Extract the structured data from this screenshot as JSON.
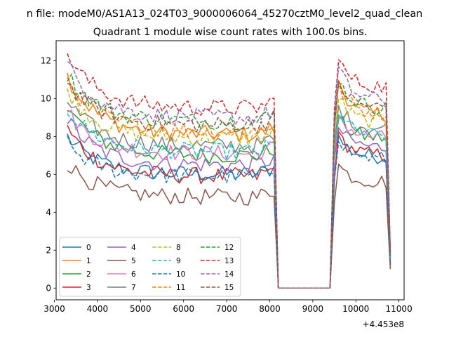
{
  "chart_data": {
    "type": "line",
    "suptitle": "n file: modeM0/AS1A13_024T03_9000006064_45270cztM0_level2_quad_clean",
    "title": "Quadrant 1 module wise count rates with 100.0s bins.",
    "xlabel": "",
    "ylabel": "",
    "x_offset_label": "+4.453e8",
    "xlim": [
      3040,
      11120
    ],
    "ylim": [
      -0.62,
      13.05
    ],
    "x_ticks": [
      3000,
      4000,
      5000,
      6000,
      7000,
      8000,
      9000,
      10000,
      11000
    ],
    "x_tick_labels": [
      "3000",
      "4000",
      "5000",
      "6000",
      "7000",
      "8000",
      "9000",
      "10000",
      "11000"
    ],
    "y_ticks": [
      0,
      2,
      4,
      6,
      8,
      10,
      12
    ],
    "y_tick_labels": [
      "0",
      "2",
      "4",
      "6",
      "8",
      "10",
      "12"
    ],
    "grid": false,
    "legend_position": "lower-left",
    "segments": {
      "seg1": {
        "start": 3300,
        "end": 8100,
        "step": 100
      },
      "drop": [
        8200,
        8300,
        9400
      ],
      "seg2": {
        "start": 9500,
        "end": 10700,
        "step": 100
      },
      "last_x": 10800
    },
    "series": [
      {
        "name": "0",
        "color": "#1f77b4",
        "dash": "solid",
        "base1": 6.0,
        "start1": 8.0,
        "base2": 6.9,
        "peak2": 8.0,
        "last": 1.3
      },
      {
        "name": "1",
        "color": "#ff7f0e",
        "dash": "solid",
        "base1": 8.1,
        "start1": 11.2,
        "base2": 9.1,
        "peak2": 11.0,
        "last": 1.8
      },
      {
        "name": "2",
        "color": "#2ca02c",
        "dash": "solid",
        "base1": 7.0,
        "start1": 9.6,
        "base2": 7.9,
        "peak2": 9.0,
        "last": 1.5
      },
      {
        "name": "3",
        "color": "#d62728",
        "dash": "solid",
        "base1": 5.9,
        "start1": 8.4,
        "base2": 7.0,
        "peak2": 8.1,
        "last": 1.2
      },
      {
        "name": "4",
        "color": "#9467bd",
        "dash": "solid",
        "base1": 6.5,
        "start1": 8.9,
        "base2": 7.4,
        "peak2": 8.5,
        "last": 1.4
      },
      {
        "name": "5",
        "color": "#8c564b",
        "dash": "solid",
        "base1": 4.8,
        "start1": 6.6,
        "base2": 5.6,
        "peak2": 6.5,
        "last": 1.0
      },
      {
        "name": "6",
        "color": "#e377c2",
        "dash": "solid",
        "base1": 7.1,
        "start1": 9.3,
        "base2": 7.9,
        "peak2": 9.2,
        "last": 1.5
      },
      {
        "name": "7",
        "color": "#7f7f7f",
        "dash": "solid",
        "base1": 7.5,
        "start1": 9.9,
        "base2": 8.4,
        "peak2": 9.6,
        "last": 1.6
      },
      {
        "name": "8",
        "color": "#bcbd22",
        "dash": "dashed",
        "base1": 7.9,
        "start1": 10.5,
        "base2": 8.7,
        "peak2": 10.1,
        "last": 1.7
      },
      {
        "name": "9",
        "color": "#17becf",
        "dash": "dashed",
        "base1": 7.2,
        "start1": 9.5,
        "base2": 8.0,
        "peak2": 9.3,
        "last": 1.6
      },
      {
        "name": "10",
        "color": "#1f77b4",
        "dash": "dashed",
        "base1": 5.9,
        "start1": 7.6,
        "base2": 6.8,
        "peak2": 7.9,
        "last": 1.3
      },
      {
        "name": "11",
        "color": "#ff7f0e",
        "dash": "dashed",
        "base1": 8.3,
        "start1": 11.0,
        "base2": 9.2,
        "peak2": 10.7,
        "last": 1.8
      },
      {
        "name": "12",
        "color": "#2ca02c",
        "dash": "dashed",
        "base1": 8.8,
        "start1": 11.3,
        "base2": 9.5,
        "peak2": 11.0,
        "last": 1.9
      },
      {
        "name": "13",
        "color": "#d62728",
        "dash": "dashed",
        "base1": 9.5,
        "start1": 12.4,
        "base2": 10.6,
        "peak2": 12.0,
        "last": 2.0
      },
      {
        "name": "14",
        "color": "#9467bd",
        "dash": "dashed",
        "base1": 9.0,
        "start1": 11.8,
        "base2": 9.9,
        "peak2": 11.6,
        "last": 1.9
      },
      {
        "name": "15",
        "color": "#8c564b",
        "dash": "dashed",
        "base1": 8.6,
        "start1": 10.9,
        "base2": 9.5,
        "peak2": 10.9,
        "last": 1.8
      }
    ]
  }
}
